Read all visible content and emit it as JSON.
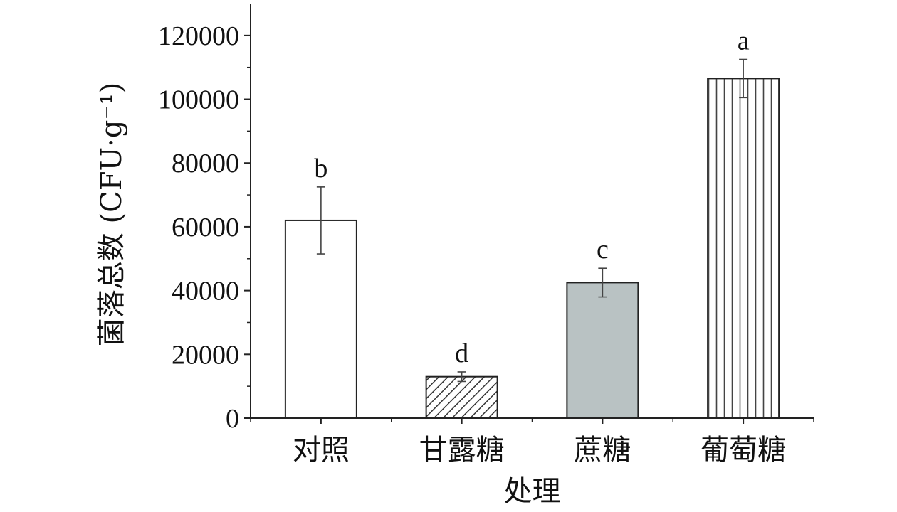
{
  "chart_data": {
    "type": "bar",
    "categories": [
      "对照",
      "甘露糖",
      "蔗糖",
      "葡萄糖"
    ],
    "values": [
      62000,
      13000,
      42500,
      106500
    ],
    "errors": [
      10500,
      1500,
      4500,
      6000
    ],
    "significance": [
      "b",
      "d",
      "c",
      "a"
    ],
    "fills": [
      "plain-white",
      "diagonal-hatch",
      "solid-gray",
      "vertical-stripes"
    ],
    "colors": {
      "gray_fill": "#b9c2c3",
      "axis": "#222222",
      "error_bar": "#444444"
    },
    "xlabel": "处理",
    "ylabel": "菌落总数 (CFU·g⁻¹)",
    "ylim": [
      0,
      130000
    ],
    "yticks": [
      0,
      20000,
      40000,
      60000,
      80000,
      100000,
      120000
    ],
    "grid": false
  }
}
